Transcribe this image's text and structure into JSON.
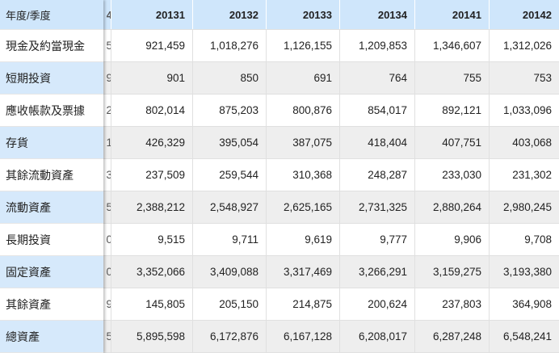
{
  "header": {
    "row_label": "年度/季度",
    "partial_column": "4",
    "columns": [
      "20131",
      "20132",
      "20133",
      "20134",
      "20141",
      "20142"
    ]
  },
  "rows": [
    {
      "label": "現金及約當現金",
      "partial": "5",
      "values": [
        "921,459",
        "1,018,276",
        "1,126,155",
        "1,209,853",
        "1,346,607",
        "1,312,026"
      ]
    },
    {
      "label": "短期投資",
      "partial": "9",
      "values": [
        "901",
        "850",
        "691",
        "764",
        "755",
        "753"
      ]
    },
    {
      "label": "應收帳款及票據",
      "partial": "2",
      "values": [
        "802,014",
        "875,203",
        "800,876",
        "854,017",
        "892,121",
        "1,033,096"
      ]
    },
    {
      "label": "存貨",
      "partial": "1",
      "values": [
        "426,329",
        "395,054",
        "387,075",
        "418,404",
        "407,751",
        "403,068"
      ]
    },
    {
      "label": "其餘流動資產",
      "partial": "3",
      "values": [
        "237,509",
        "259,544",
        "310,368",
        "248,287",
        "233,030",
        "231,302"
      ]
    },
    {
      "label": "流動資產",
      "partial": "5",
      "values": [
        "2,388,212",
        "2,548,927",
        "2,625,165",
        "2,731,325",
        "2,880,264",
        "2,980,245"
      ]
    },
    {
      "label": "長期投資",
      "partial": "0",
      "values": [
        "9,515",
        "9,711",
        "9,619",
        "9,777",
        "9,906",
        "9,708"
      ]
    },
    {
      "label": "固定資產",
      "partial": "0",
      "values": [
        "3,352,066",
        "3,409,088",
        "3,317,469",
        "3,266,291",
        "3,159,275",
        "3,193,380"
      ]
    },
    {
      "label": "其餘資產",
      "partial": "9",
      "values": [
        "145,805",
        "205,150",
        "214,875",
        "200,624",
        "237,803",
        "364,908"
      ]
    },
    {
      "label": "總資產",
      "partial": "5",
      "values": [
        "5,895,598",
        "6,172,876",
        "6,167,128",
        "6,208,017",
        "6,287,248",
        "6,548,241"
      ]
    }
  ],
  "colors": {
    "header_bg": "#cfe6fb",
    "label_blue_bg": "#d6e9fb",
    "stripe_gray_bg": "#eeeeee",
    "text": "#222222"
  }
}
